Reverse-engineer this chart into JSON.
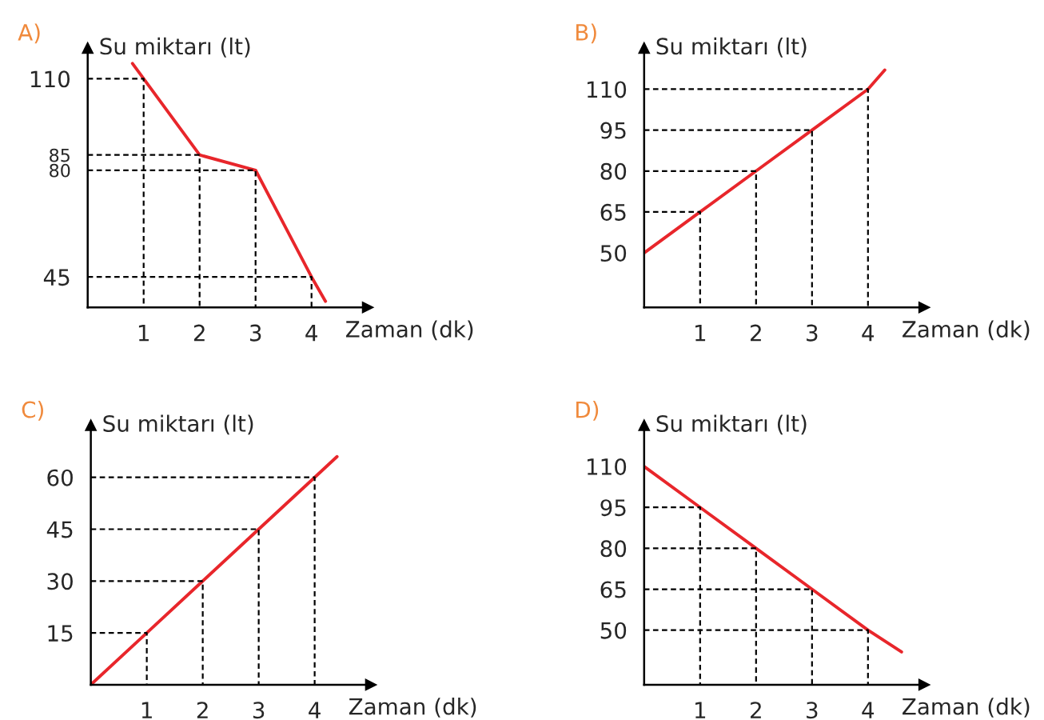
{
  "chart_data": [
    {
      "type": "line",
      "title": "A)",
      "xlabel": "Zaman (dk)",
      "ylabel": "Su miktarı (lt)",
      "xlim": [
        0,
        5
      ],
      "ylim": [
        35,
        120
      ],
      "xticks": [
        1,
        2,
        3,
        4
      ],
      "yticks": [
        45,
        80,
        85,
        110
      ],
      "grid": false,
      "legend": false,
      "series": [
        {
          "color": "#e8262b",
          "x": [
            0.8,
            1,
            2,
            3,
            4,
            4.25
          ],
          "values": [
            115,
            110,
            85,
            80,
            45,
            37
          ]
        },
        {
          "color": "#000000",
          "line_style": "dashed",
          "x": [
            0,
            1,
            1
          ],
          "values": [
            110,
            110,
            35
          ]
        },
        {
          "color": "#000000",
          "line_style": "dashed",
          "x": [
            0,
            2,
            2
          ],
          "values": [
            85,
            85,
            35
          ]
        },
        {
          "color": "#000000",
          "line_style": "dashed",
          "x": [
            0,
            3,
            3
          ],
          "values": [
            80,
            80,
            35
          ]
        },
        {
          "color": "#000000",
          "line_style": "dashed",
          "x": [
            0,
            4,
            4
          ],
          "values": [
            45,
            45,
            35
          ]
        }
      ]
    },
    {
      "type": "line",
      "title": "B)",
      "xlabel": "Zaman (dk)",
      "ylabel": "Su miktarı (lt)",
      "xlim": [
        0,
        5
      ],
      "ylim": [
        30,
        125
      ],
      "xticks": [
        1,
        2,
        3,
        4
      ],
      "yticks": [
        50,
        65,
        80,
        95,
        110
      ],
      "grid": false,
      "legend": false,
      "series": [
        {
          "color": "#e8262b",
          "x": [
            0,
            1,
            2,
            3,
            4,
            4.3
          ],
          "values": [
            50,
            65,
            80,
            95,
            110,
            117
          ]
        },
        {
          "color": "#000000",
          "line_style": "dashed",
          "x": [
            0,
            1,
            1
          ],
          "values": [
            65,
            65,
            30
          ]
        },
        {
          "color": "#000000",
          "line_style": "dashed",
          "x": [
            0,
            2,
            2
          ],
          "values": [
            80,
            80,
            30
          ]
        },
        {
          "color": "#000000",
          "line_style": "dashed",
          "x": [
            0,
            3,
            3
          ],
          "values": [
            95,
            95,
            30
          ]
        },
        {
          "color": "#000000",
          "line_style": "dashed",
          "x": [
            0,
            4,
            4
          ],
          "values": [
            110,
            110,
            30
          ]
        }
      ]
    },
    {
      "type": "line",
      "title": "C)",
      "xlabel": "Zaman (dk)",
      "ylabel": "Su miktarı (lt)",
      "xlim": [
        0,
        5
      ],
      "ylim": [
        0,
        75
      ],
      "xticks": [
        1,
        2,
        3,
        4
      ],
      "yticks": [
        15,
        30,
        45,
        60
      ],
      "grid": false,
      "legend": false,
      "series": [
        {
          "color": "#e8262b",
          "x": [
            0,
            1,
            2,
            3,
            4,
            4.4
          ],
          "values": [
            0,
            15,
            30,
            45,
            60,
            66
          ]
        },
        {
          "color": "#000000",
          "line_style": "dashed",
          "x": [
            0,
            1,
            1
          ],
          "values": [
            15,
            15,
            0
          ]
        },
        {
          "color": "#000000",
          "line_style": "dashed",
          "x": [
            0,
            2,
            2
          ],
          "values": [
            30,
            30,
            0
          ]
        },
        {
          "color": "#000000",
          "line_style": "dashed",
          "x": [
            0,
            3,
            3
          ],
          "values": [
            45,
            45,
            0
          ]
        },
        {
          "color": "#000000",
          "line_style": "dashed",
          "x": [
            0,
            4,
            4
          ],
          "values": [
            60,
            60,
            0
          ]
        }
      ]
    },
    {
      "type": "line",
      "title": "D)",
      "xlabel": "Zaman (dk)",
      "ylabel": "Su miktarı (lt)",
      "xlim": [
        0,
        5
      ],
      "ylim": [
        30,
        125
      ],
      "xticks": [
        1,
        2,
        3,
        4
      ],
      "yticks": [
        50,
        65,
        80,
        95,
        110
      ],
      "grid": false,
      "legend": false,
      "series": [
        {
          "color": "#e8262b",
          "x": [
            0,
            1,
            2,
            3,
            4,
            4.6
          ],
          "values": [
            110,
            95,
            80,
            65,
            50,
            42
          ]
        },
        {
          "color": "#000000",
          "line_style": "dashed",
          "x": [
            0,
            1,
            1
          ],
          "values": [
            95,
            95,
            30
          ]
        },
        {
          "color": "#000000",
          "line_style": "dashed",
          "x": [
            0,
            2,
            2
          ],
          "values": [
            80,
            80,
            30
          ]
        },
        {
          "color": "#000000",
          "line_style": "dashed",
          "x": [
            0,
            3,
            3
          ],
          "values": [
            65,
            65,
            30
          ]
        },
        {
          "color": "#000000",
          "line_style": "dashed",
          "x": [
            0,
            4,
            4
          ],
          "values": [
            50,
            50,
            30
          ]
        }
      ]
    }
  ]
}
